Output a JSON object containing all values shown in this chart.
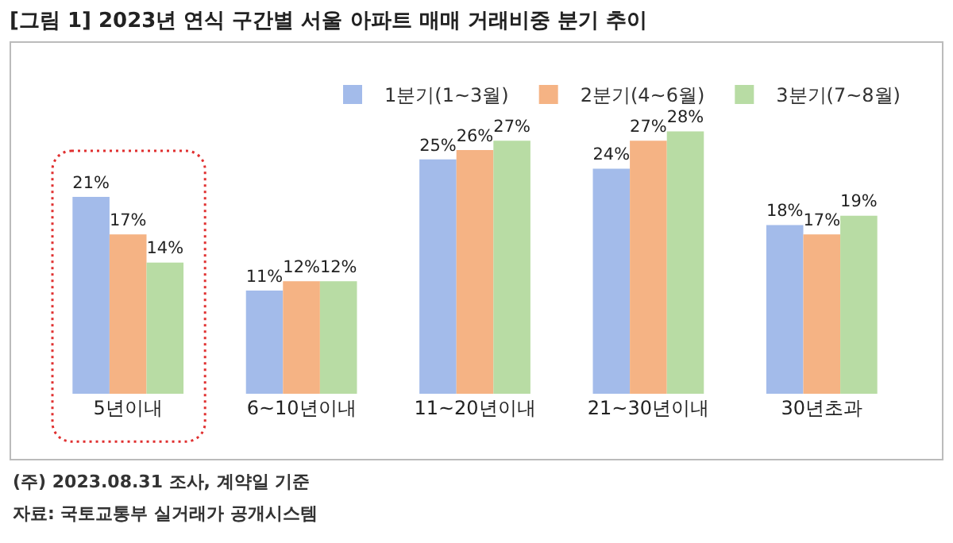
{
  "chart_data": {
    "type": "bar",
    "title": "[그림 1] 2023년 연식 구간별 서울 아파트 매매 거래비중 분기 추이",
    "categories": [
      "5년이내",
      "6~10년이내",
      "11~20년이내",
      "21~30년이내",
      "30년초과"
    ],
    "series": [
      {
        "name": "1분기(1~3월)",
        "color": "#a3bbea",
        "values": [
          21,
          11,
          25,
          24,
          18
        ],
        "value_labels": [
          "21%",
          "11%",
          "25%",
          "24%",
          "18%"
        ]
      },
      {
        "name": "2분기(4~6월)",
        "color": "#f5b384",
        "values": [
          17,
          12,
          26,
          27,
          17
        ],
        "value_labels": [
          "17%",
          "12%",
          "26%",
          "27%",
          "17%"
        ]
      },
      {
        "name": "3분기(7~8월)",
        "color": "#b8dca4",
        "values": [
          14,
          12,
          27,
          28,
          19
        ],
        "value_labels": [
          "14%",
          "12%",
          "27%",
          "28%",
          "19%"
        ]
      }
    ],
    "legend": "top right",
    "annotations": [
      "(주) 2023.08.31 조사, 계약일 기준",
      "자료: 국토교통부 실거래가 공개시스템"
    ]
  }
}
